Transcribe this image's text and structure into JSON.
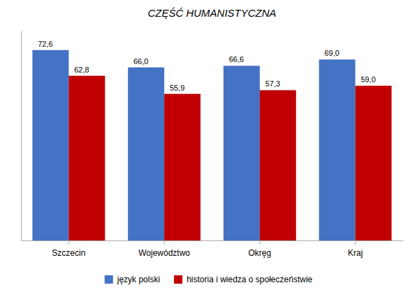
{
  "chart_data": {
    "type": "bar",
    "title": "CZĘŚĆ HUMANISTYCZNA",
    "categories": [
      "Szczecin",
      "Województwo",
      "Okręg",
      "Kraj"
    ],
    "series": [
      {
        "name": "język polski",
        "color": "#4472C4",
        "values": [
          72.6,
          66.0,
          66.6,
          69.0
        ],
        "value_labels": [
          "72,6",
          "66,0",
          "66,6",
          "69,0"
        ]
      },
      {
        "name": "historia i wiedza o społeczeństwie",
        "color": "#C00000",
        "values": [
          62.8,
          55.9,
          57.3,
          59.0
        ],
        "value_labels": [
          "62,8",
          "55,9",
          "57,3",
          "59,0"
        ]
      }
    ],
    "ylim": [
      0,
      80
    ],
    "yticks": [],
    "grid": false,
    "legend": "bottom",
    "data_labels": true,
    "tick_labels": "x"
  }
}
